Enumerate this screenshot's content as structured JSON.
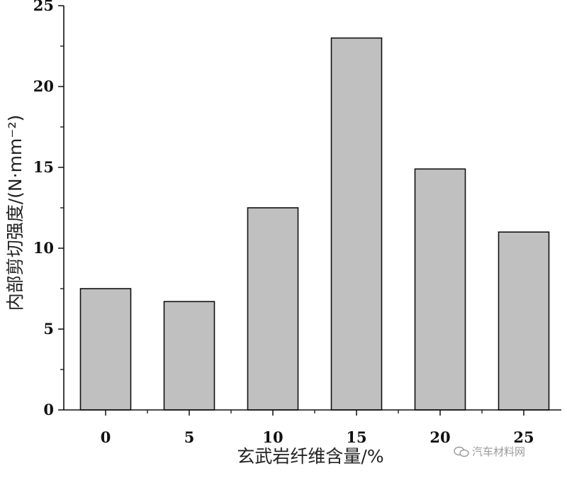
{
  "chart_data": {
    "type": "bar",
    "categories": [
      "0",
      "5",
      "10",
      "15",
      "20",
      "25"
    ],
    "values": [
      7.5,
      6.7,
      12.5,
      23.0,
      14.9,
      11.0
    ],
    "xlabel": "玄武岩纤维含量/%",
    "ylabel": "内部剪切强度/(N·mm⁻²)",
    "ylim": [
      0,
      25
    ],
    "yticks": [
      "0",
      "5",
      "10",
      "15",
      "20",
      "25"
    ],
    "grid": false,
    "bar_color": "#c0c0c0",
    "bar_edge_color": "#111111"
  },
  "watermark": {
    "text": "汽车材料网",
    "icon": "wechat-logo-icon"
  }
}
